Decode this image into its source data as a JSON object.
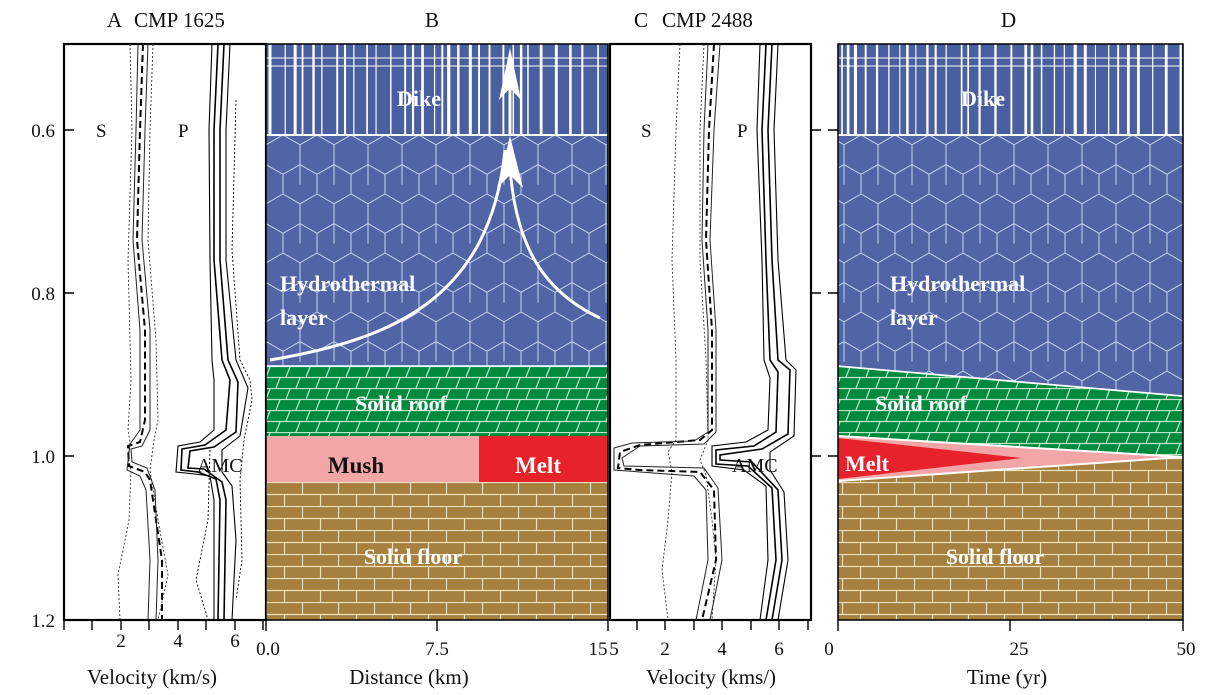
{
  "panels": {
    "a": {
      "label": "A",
      "title": "CMP 1625",
      "s_label": "S",
      "p_label": "P",
      "amc_label": "AMC",
      "xlabel": "Velocity (km/s)",
      "xticks": [
        "2",
        "4",
        "6"
      ]
    },
    "b": {
      "label": "B",
      "xlabel": "Distance (km)",
      "xticks": [
        "0.0",
        "7.5",
        "15"
      ],
      "zones": {
        "dike": "Dike",
        "hydro_line1": "Hydrothermal",
        "hydro_line2": "layer",
        "roof": "Solid roof",
        "mush": "Mush",
        "melt": "Melt",
        "floor": "Solid floor"
      }
    },
    "c": {
      "label": "C",
      "title": "CMP 2488",
      "s_label": "S",
      "p_label": "P",
      "amc_label": "AMC",
      "xlabel": "Velocity (kms/)",
      "xticks": [
        "2",
        "4",
        "6"
      ]
    },
    "d": {
      "label": "D",
      "xlabel": "Time (yr)",
      "xticks": [
        "0",
        "25",
        "50"
      ],
      "zones": {
        "dike": "Dike",
        "hydro_line1": "Hydrothermal",
        "hydro_line2": "layer",
        "roof": "Solid roof",
        "melt": "Melt",
        "floor": "Solid floor"
      }
    }
  },
  "yaxis": {
    "ticks": [
      "0.6",
      "0.8",
      "1.0",
      "1.2"
    ]
  },
  "colors": {
    "dike_layer": "#4a5fa0",
    "hydrothermal": "#5064a6",
    "roof": "#008a3e",
    "mush": "#f2a6a8",
    "melt": "#e8222b",
    "floor": "#a6803e"
  }
}
